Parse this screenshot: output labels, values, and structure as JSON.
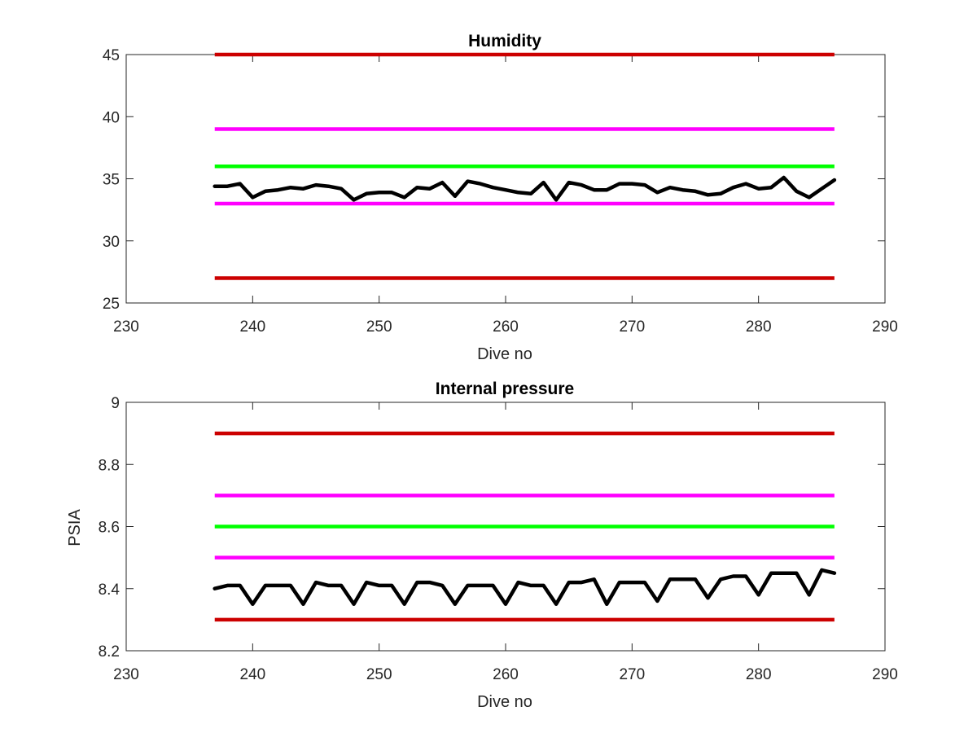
{
  "colors": {
    "background": "#ffffff",
    "axes": "#262626",
    "red": "#cc0000",
    "magenta": "#ff00ff",
    "green": "#00ff00",
    "data": "#000000"
  },
  "chart_data": [
    {
      "type": "line",
      "title": "Humidity",
      "xlabel": "Dive no",
      "ylabel": "",
      "xlim": [
        230,
        290
      ],
      "ylim": [
        25,
        45
      ],
      "xticks": [
        "230",
        "240",
        "250",
        "260",
        "270",
        "280",
        "290"
      ],
      "yticks": [
        "25",
        "30",
        "35",
        "40",
        "45"
      ],
      "grid": false,
      "reference_lines": [
        {
          "color": "#cc0000",
          "y": 45,
          "x": [
            237,
            286
          ]
        },
        {
          "color": "#ff00ff",
          "y": 39,
          "x": [
            237,
            286
          ]
        },
        {
          "color": "#00ff00",
          "y": 36,
          "x": [
            237,
            286
          ]
        },
        {
          "color": "#ff00ff",
          "y": 33,
          "x": [
            237,
            286
          ]
        },
        {
          "color": "#cc0000",
          "y": 27,
          "x": [
            237,
            286
          ]
        }
      ],
      "series": [
        {
          "color": "#000000",
          "x": [
            237,
            238,
            239,
            240,
            241,
            242,
            243,
            244,
            245,
            246,
            247,
            248,
            249,
            250,
            251,
            252,
            253,
            254,
            255,
            256,
            257,
            258,
            259,
            260,
            261,
            262,
            263,
            264,
            265,
            266,
            267,
            268,
            269,
            270,
            271,
            272,
            273,
            274,
            275,
            276,
            277,
            278,
            279,
            280,
            281,
            282,
            283,
            284,
            285,
            286
          ],
          "y": [
            34.4,
            34.4,
            34.6,
            33.5,
            34.0,
            34.1,
            34.3,
            34.2,
            34.5,
            34.4,
            34.2,
            33.3,
            33.8,
            33.9,
            33.9,
            33.5,
            34.3,
            34.2,
            34.7,
            33.6,
            34.8,
            34.6,
            34.3,
            34.1,
            33.9,
            33.8,
            34.7,
            33.3,
            34.7,
            34.5,
            34.1,
            34.1,
            34.6,
            34.6,
            34.5,
            33.9,
            34.3,
            34.1,
            34.0,
            33.7,
            33.8,
            34.3,
            34.6,
            34.2,
            34.3,
            35.1,
            34.0,
            33.5,
            34.2,
            34.9
          ]
        }
      ]
    },
    {
      "type": "line",
      "title": "Internal pressure",
      "xlabel": "Dive no",
      "ylabel": "PSIA",
      "xlim": [
        230,
        290
      ],
      "ylim": [
        8.2,
        9.0
      ],
      "xticks": [
        "230",
        "240",
        "250",
        "260",
        "270",
        "280",
        "290"
      ],
      "yticks": [
        "8.2",
        "8.4",
        "8.6",
        "8.8",
        "9"
      ],
      "grid": false,
      "reference_lines": [
        {
          "color": "#cc0000",
          "y": 8.9,
          "x": [
            237,
            286
          ]
        },
        {
          "color": "#ff00ff",
          "y": 8.7,
          "x": [
            237,
            286
          ]
        },
        {
          "color": "#00ff00",
          "y": 8.6,
          "x": [
            237,
            286
          ]
        },
        {
          "color": "#ff00ff",
          "y": 8.5,
          "x": [
            237,
            286
          ]
        },
        {
          "color": "#cc0000",
          "y": 8.3,
          "x": [
            237,
            286
          ]
        }
      ],
      "series": [
        {
          "color": "#000000",
          "x": [
            237,
            238,
            239,
            240,
            241,
            242,
            243,
            244,
            245,
            246,
            247,
            248,
            249,
            250,
            251,
            252,
            253,
            254,
            255,
            256,
            257,
            258,
            259,
            260,
            261,
            262,
            263,
            264,
            265,
            266,
            267,
            268,
            269,
            270,
            271,
            272,
            273,
            274,
            275,
            276,
            277,
            278,
            279,
            280,
            281,
            282,
            283,
            284,
            285,
            286
          ],
          "y": [
            8.4,
            8.41,
            8.41,
            8.35,
            8.41,
            8.41,
            8.41,
            8.35,
            8.42,
            8.41,
            8.41,
            8.35,
            8.42,
            8.41,
            8.41,
            8.35,
            8.42,
            8.42,
            8.41,
            8.35,
            8.41,
            8.41,
            8.41,
            8.35,
            8.42,
            8.41,
            8.41,
            8.35,
            8.42,
            8.42,
            8.43,
            8.35,
            8.42,
            8.42,
            8.42,
            8.36,
            8.43,
            8.43,
            8.43,
            8.37,
            8.43,
            8.44,
            8.44,
            8.38,
            8.45,
            8.45,
            8.45,
            8.38,
            8.46,
            8.45
          ]
        }
      ]
    }
  ]
}
